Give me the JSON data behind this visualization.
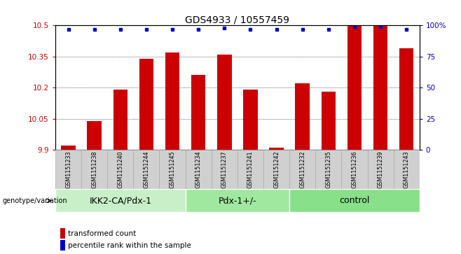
{
  "title": "GDS4933 / 10557459",
  "samples": [
    "GSM1151233",
    "GSM1151238",
    "GSM1151240",
    "GSM1151244",
    "GSM1151245",
    "GSM1151234",
    "GSM1151237",
    "GSM1151241",
    "GSM1151242",
    "GSM1151232",
    "GSM1151235",
    "GSM1151236",
    "GSM1151239",
    "GSM1151243"
  ],
  "bar_values": [
    9.92,
    10.04,
    10.19,
    10.34,
    10.37,
    10.26,
    10.36,
    10.19,
    9.91,
    10.22,
    10.18,
    10.5,
    10.5,
    10.39
  ],
  "percentile_values": [
    97,
    97,
    97,
    97,
    97,
    97,
    98,
    97,
    97,
    97,
    97,
    99,
    99,
    97
  ],
  "groups": [
    {
      "label": "IKK2-CA/Pdx-1",
      "start": 0,
      "end": 5,
      "color": "#c8f0c8"
    },
    {
      "label": "Pdx-1+/-",
      "start": 5,
      "end": 9,
      "color": "#a0e8a0"
    },
    {
      "label": "control",
      "start": 9,
      "end": 14,
      "color": "#88e088"
    }
  ],
  "ylim": [
    9.9,
    10.5
  ],
  "yticks": [
    9.9,
    10.05,
    10.2,
    10.35,
    10.5
  ],
  "yticklabels": [
    "9.9",
    "10.05",
    "10.2",
    "10.35",
    "10.5"
  ],
  "right_yticks": [
    0,
    25,
    50,
    75,
    100
  ],
  "right_yticklabels": [
    "0",
    "25",
    "50",
    "75",
    "100%"
  ],
  "bar_color": "#cc0000",
  "dot_color": "#0000cc",
  "bar_width": 0.55,
  "genotype_label": "genotype/variation",
  "legend_bar": "transformed count",
  "legend_dot": "percentile rank within the sample",
  "title_fontsize": 10,
  "tick_fontsize": 7.5,
  "sample_fontsize": 5.8,
  "group_fontsize": 9,
  "axis_color_left": "#cc0000",
  "axis_color_right": "#0000cc",
  "gray_box_color": "#d0d0d0",
  "gray_box_edge": "#aaaaaa"
}
